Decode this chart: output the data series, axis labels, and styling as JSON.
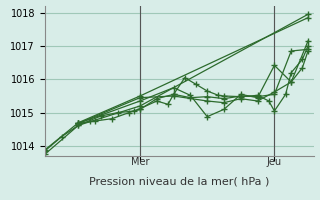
{
  "title": "",
  "xlabel": "Pression niveau de la mer( hPa )",
  "ylabel": "",
  "bg_color": "#d8ede8",
  "grid_color": "#a0c8b8",
  "line_color": "#2d6b2d",
  "ylim": [
    1013.7,
    1018.2
  ],
  "xlim": [
    0,
    48
  ],
  "mer_x": 17,
  "jeu_x": 41,
  "yticks": [
    1014,
    1015,
    1016,
    1017,
    1018
  ],
  "lines": [
    [
      0,
      1013.85,
      3,
      1014.28,
      6,
      1014.62,
      8,
      1014.76,
      10,
      1014.9,
      13,
      1015.0,
      16,
      1015.05,
      17,
      1015.1,
      20,
      1015.42,
      23,
      1015.55,
      26,
      1015.45,
      29,
      1015.48,
      32,
      1015.42,
      35,
      1015.5,
      38,
      1015.48,
      41,
      1015.55,
      44,
      1016.85,
      47,
      1016.9
    ],
    [
      6,
      1014.68,
      9,
      1014.75,
      12,
      1014.82,
      15,
      1015.0,
      17,
      1015.12,
      20,
      1015.35,
      22,
      1015.25,
      23,
      1015.55,
      25,
      1016.05,
      27,
      1015.85,
      29,
      1015.65,
      31,
      1015.52,
      32,
      1015.5,
      35,
      1015.48,
      38,
      1015.52,
      40,
      1015.35,
      41,
      1015.05,
      43,
      1015.55,
      44,
      1016.2,
      46,
      1016.6,
      47,
      1017.0
    ],
    [
      6,
      1014.68,
      17,
      1015.35,
      23,
      1015.75,
      26,
      1015.52,
      29,
      1014.88,
      32,
      1015.1,
      35,
      1015.55,
      38,
      1015.45,
      41,
      1016.42,
      44,
      1015.92,
      46,
      1016.35,
      47,
      1016.85
    ],
    [
      0,
      1013.88,
      6,
      1014.7,
      17,
      1015.5,
      47,
      1017.85
    ],
    [
      0,
      1013.75,
      6,
      1014.62,
      17,
      1015.2,
      47,
      1017.95
    ],
    [
      6,
      1014.68,
      17,
      1015.45,
      23,
      1015.5,
      29,
      1015.35,
      32,
      1015.3,
      35,
      1015.42,
      38,
      1015.35,
      41,
      1015.62,
      44,
      1015.92,
      47,
      1017.15
    ]
  ]
}
